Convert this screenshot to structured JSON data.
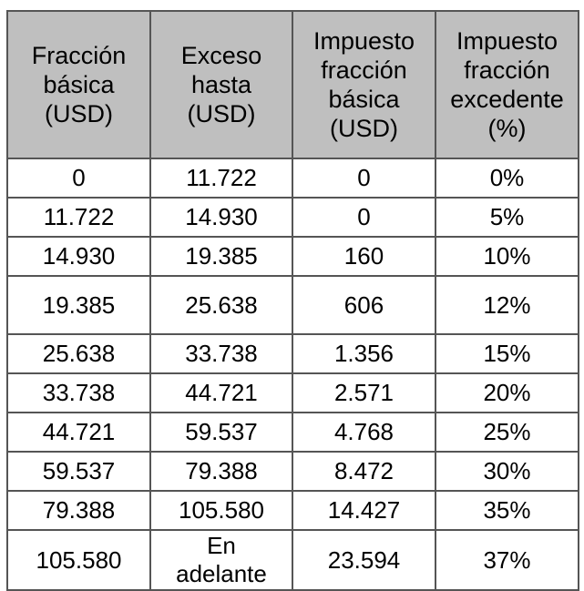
{
  "table": {
    "headers": [
      "Fracción\nbásica\n(USD)",
      "Exceso\nhasta\n(USD)",
      "Impuesto\nfracción\nbásica\n(USD)",
      "Impuesto\nfracción\nexcedente\n(%)"
    ],
    "rows": [
      [
        "0",
        "11.722",
        "0",
        "0%"
      ],
      [
        "11.722",
        "14.930",
        "0",
        "5%"
      ],
      [
        "14.930",
        "19.385",
        "160",
        "10%"
      ],
      [
        "19.385",
        "25.638",
        "606",
        "12%"
      ],
      [
        "25.638",
        "33.738",
        "1.356",
        "15%"
      ],
      [
        "33.738",
        "44.721",
        "2.571",
        "20%"
      ],
      [
        "44.721",
        "59.537",
        "4.768",
        "25%"
      ],
      [
        "59.537",
        "79.388",
        "8.472",
        "30%"
      ],
      [
        "79.388",
        "105.580",
        "14.427",
        "35%"
      ],
      [
        "105.580",
        "En\nadelante",
        "23.594",
        "37%"
      ]
    ]
  }
}
